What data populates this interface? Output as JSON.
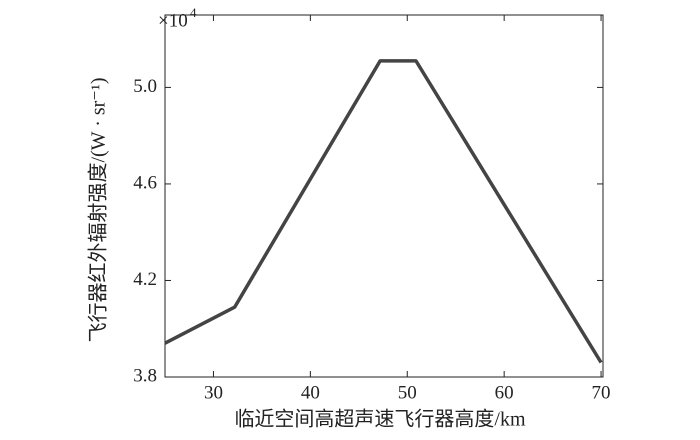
{
  "chart_data": {
    "type": "line",
    "xlabel": "临近空间高超声速飞行器高度/km",
    "ylabel": "飞行器红外辐射强度/(W · sr⁻¹)",
    "y_multiplier": {
      "base": "×10",
      "exponent": "4"
    },
    "x": [
      25,
      32.2,
      47.2,
      50.9,
      70
    ],
    "series": [
      {
        "color": "#444444",
        "values": [
          3.94,
          4.09,
          5.11,
          5.11,
          3.86
        ]
      }
    ],
    "xlim": [
      25,
      70.2
    ],
    "xticks": [
      30,
      40,
      50,
      60,
      70
    ],
    "ylim": [
      3.8,
      5.3
    ],
    "yticks": [
      3.8,
      4.2,
      4.6,
      {
        "value": 5,
        "label": "5.0"
      }
    ],
    "grid": false
  }
}
